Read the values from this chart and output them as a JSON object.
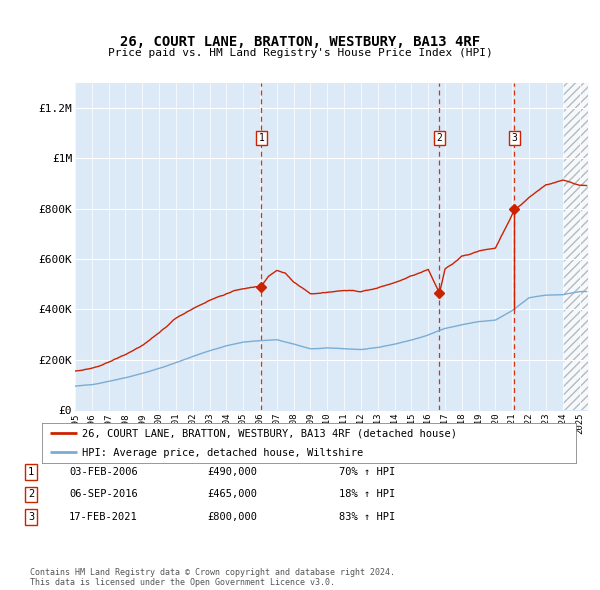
{
  "title": "26, COURT LANE, BRATTON, WESTBURY, BA13 4RF",
  "subtitle": "Price paid vs. HM Land Registry's House Price Index (HPI)",
  "plot_bg": "#dce9f7",
  "xlim_min": 1995.0,
  "xlim_max": 2025.5,
  "ylim": [
    0,
    1300000
  ],
  "yticks": [
    0,
    200000,
    400000,
    600000,
    800000,
    1000000,
    1200000
  ],
  "ytick_labels": [
    "£0",
    "£200K",
    "£400K",
    "£600K",
    "£800K",
    "£1M",
    "£1.2M"
  ],
  "hpi_line_color": "#7aadd4",
  "price_line_color": "#cc2200",
  "dashed_line_color": "#cc2200",
  "transactions": [
    {
      "date": 2006.08,
      "price": 490000,
      "label": "1"
    },
    {
      "date": 2016.67,
      "price": 465000,
      "label": "2"
    },
    {
      "date": 2021.12,
      "price": 800000,
      "label": "3"
    }
  ],
  "legend_label_red": "26, COURT LANE, BRATTON, WESTBURY, BA13 4RF (detached house)",
  "legend_label_blue": "HPI: Average price, detached house, Wiltshire",
  "table_rows": [
    {
      "num": "1",
      "date": "03-FEB-2006",
      "price": "£490,000",
      "hpi": "70% ↑ HPI"
    },
    {
      "num": "2",
      "date": "06-SEP-2016",
      "price": "£465,000",
      "hpi": "18% ↑ HPI"
    },
    {
      "num": "3",
      "date": "17-FEB-2021",
      "price": "£800,000",
      "hpi": "83% ↑ HPI"
    }
  ],
  "footer": "Contains HM Land Registry data © Crown copyright and database right 2024.\nThis data is licensed under the Open Government Licence v3.0."
}
